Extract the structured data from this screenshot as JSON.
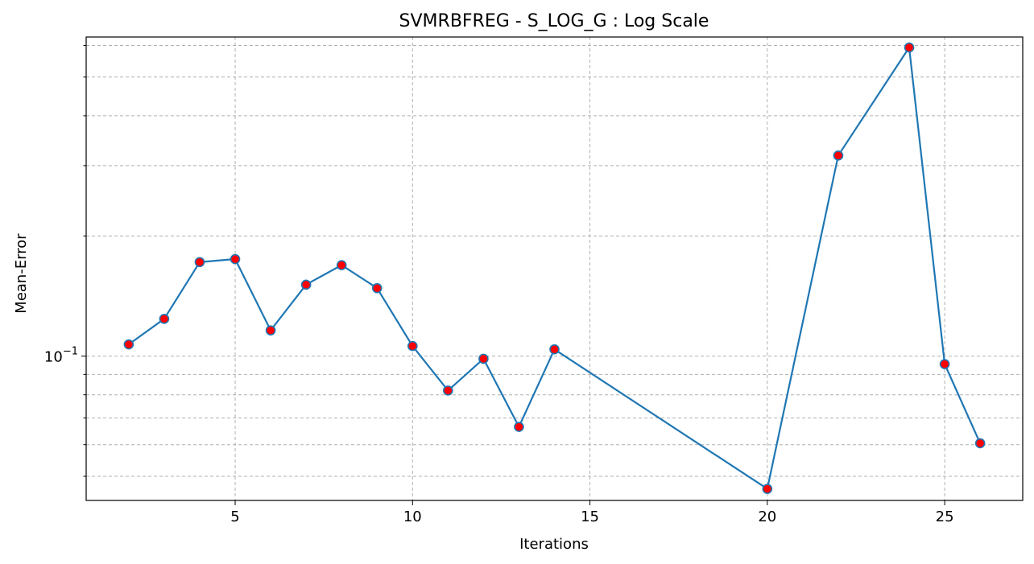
{
  "chart_data": {
    "type": "line",
    "title": "SVMRBFREG - S_LOG_G : Log Scale",
    "xlabel": "Iterations",
    "ylabel": "Mean-Error",
    "yscale": "log",
    "grid": true,
    "xlim": [
      0.8,
      27.2
    ],
    "ylim": [
      0.0435,
      0.63
    ],
    "x_ticks": [
      5,
      10,
      15,
      20,
      25
    ],
    "y_major_ticks": [
      {
        "value": 0.1,
        "base": "10",
        "exp": "−1"
      }
    ],
    "y_minor_ticks": [
      0.05,
      0.06,
      0.07,
      0.08,
      0.09,
      0.2,
      0.3,
      0.4,
      0.5,
      0.6
    ],
    "colors": {
      "line": "#1f77b4",
      "marker_face": "#ff0000",
      "marker_edge": "#1f77b4"
    },
    "series": [
      {
        "x": [
          2,
          3,
          4,
          5,
          6,
          7,
          8,
          9,
          10,
          11,
          12,
          13,
          14,
          20,
          22,
          24,
          25,
          26
        ],
        "y": [
          0.107,
          0.124,
          0.172,
          0.175,
          0.116,
          0.151,
          0.169,
          0.148,
          0.106,
          0.082,
          0.0985,
          0.0665,
          0.104,
          0.0465,
          0.318,
          0.593,
          0.0955,
          0.0605
        ]
      }
    ]
  }
}
